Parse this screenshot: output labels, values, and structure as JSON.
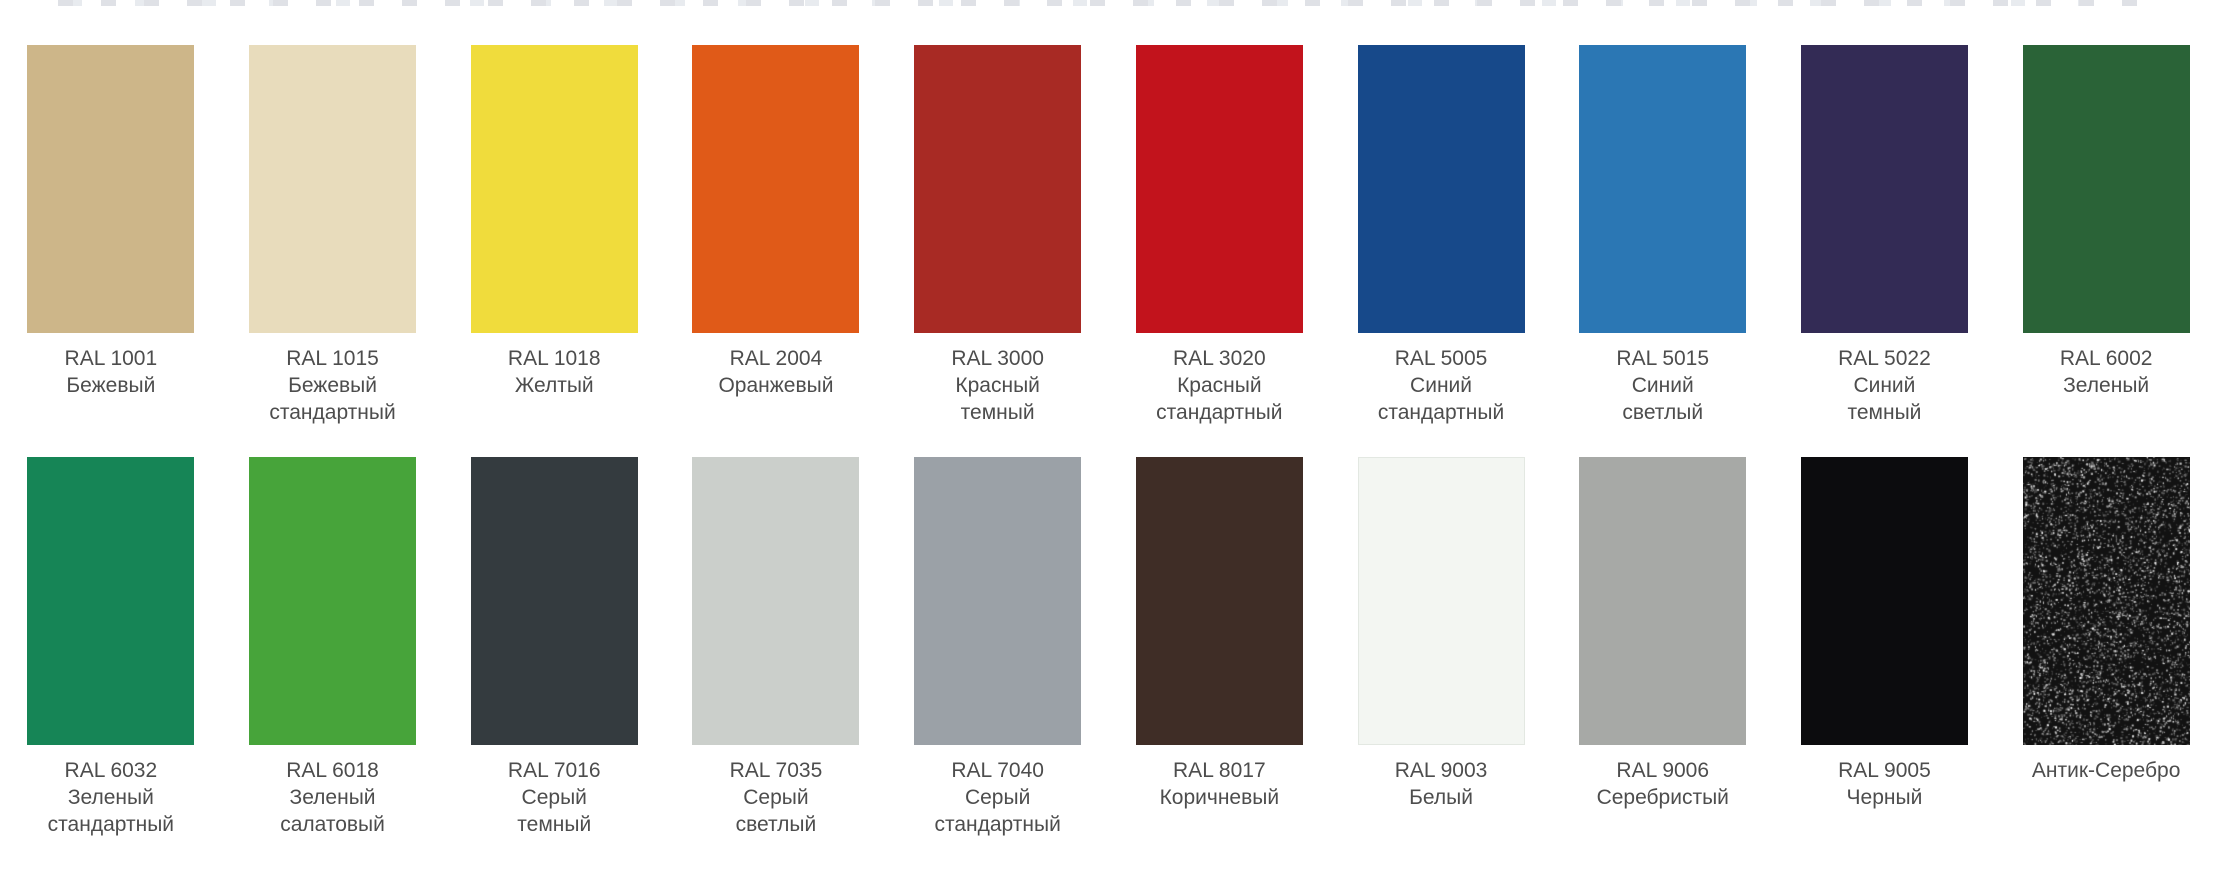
{
  "page": {
    "background": "#ffffff",
    "label_text_color": "#4d4d4d"
  },
  "swatches": [
    {
      "id": "ral-1001",
      "code": "RAL 1001",
      "name": "Бежевый",
      "color": "#cdb689"
    },
    {
      "id": "ral-1015",
      "code": "RAL 1015",
      "name": "Бежевый стандартный",
      "color": "#e8dcbc"
    },
    {
      "id": "ral-1018",
      "code": "RAL 1018",
      "name": "Желтый",
      "color": "#f0dc3c"
    },
    {
      "id": "ral-2004",
      "code": "RAL 2004",
      "name": "Оранжевый",
      "color": "#e05a18"
    },
    {
      "id": "ral-3000",
      "code": "RAL 3000",
      "name": "Красный темный",
      "color": "#a82a24"
    },
    {
      "id": "ral-3020",
      "code": "RAL 3020",
      "name": "Красный стандартный",
      "color": "#c2131c"
    },
    {
      "id": "ral-5005",
      "code": "RAL 5005",
      "name": "Синий стандартный",
      "color": "#17498a"
    },
    {
      "id": "ral-5015",
      "code": "RAL 5015",
      "name": "Синий светлый",
      "color": "#2b77b4"
    },
    {
      "id": "ral-5022",
      "code": "RAL 5022",
      "name": "Синий темный",
      "color": "#332b55"
    },
    {
      "id": "ral-6002",
      "code": "RAL 6002",
      "name": "Зеленый",
      "color": "#2a6337"
    },
    {
      "id": "ral-6032",
      "code": "RAL 6032",
      "name": "Зеленый стандартный",
      "color": "#168556"
    },
    {
      "id": "ral-6018",
      "code": "RAL 6018",
      "name": "Зеленый салатовый",
      "color": "#47a43a"
    },
    {
      "id": "ral-7016",
      "code": "RAL 7016",
      "name": "Серый темный",
      "color": "#343b3f"
    },
    {
      "id": "ral-7035",
      "code": "RAL 7035",
      "name": "Серый светлый",
      "color": "#cbcfcb"
    },
    {
      "id": "ral-7040",
      "code": "RAL 7040",
      "name": "Серый стандартный",
      "color": "#9ba1a7"
    },
    {
      "id": "ral-8017",
      "code": "RAL 8017",
      "name": "Коричневый",
      "color": "#3f2d26"
    },
    {
      "id": "ral-9003",
      "code": "RAL 9003",
      "name": "Белый",
      "color": "#f3f6f2",
      "border": "#e3e8e2"
    },
    {
      "id": "ral-9006",
      "code": "RAL 9006",
      "name": "Серебристый",
      "color": "#a7a9a6"
    },
    {
      "id": "ral-9005",
      "code": "RAL 9005",
      "name": "Черный",
      "color": "#0c0c0e"
    },
    {
      "id": "antik-serebro",
      "code": "Антик-Серебро",
      "name": "",
      "color": "#121212",
      "texture": "speckle",
      "speckle_colors": [
        "#f6f6f6",
        "#c2c2c2",
        "#808080",
        "#4a4a4a"
      ]
    }
  ]
}
